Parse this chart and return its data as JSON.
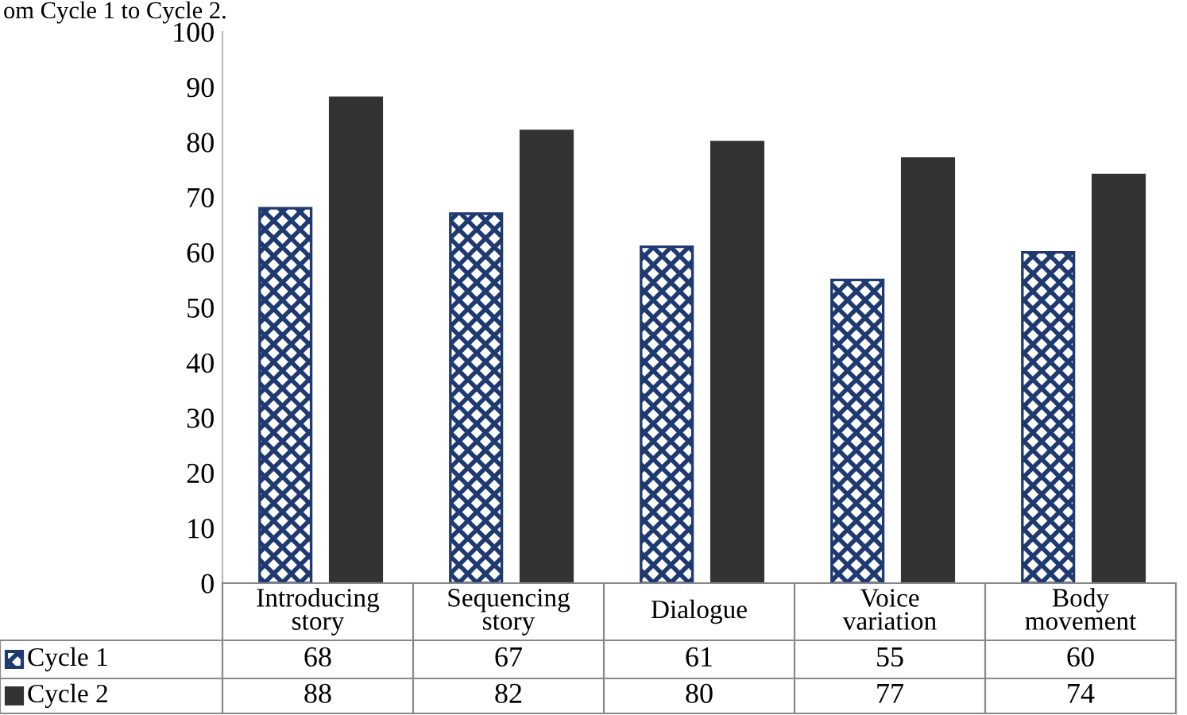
{
  "chart_data": {
    "type": "bar",
    "categories": [
      "Introducing\nstory",
      "Sequencing\nstory",
      "Dialogue",
      "Voice\nvariation",
      "Body\nmovement"
    ],
    "series": [
      {
        "name": "Cycle 1",
        "color": "#1f3a70",
        "values": [
          68,
          67,
          61,
          55,
          60
        ]
      },
      {
        "name": "Cycle 2",
        "color": "#333333",
        "values": [
          88,
          82,
          80,
          77,
          74
        ]
      }
    ],
    "ylim": [
      0,
      100
    ],
    "yticks": [
      0,
      10,
      20,
      30,
      40,
      50,
      60,
      70,
      80,
      90,
      100
    ],
    "data_labels": true,
    "legend": "bottom",
    "grid": false,
    "annotations": [
      "om Cycle 1 to Cycle 2."
    ]
  }
}
